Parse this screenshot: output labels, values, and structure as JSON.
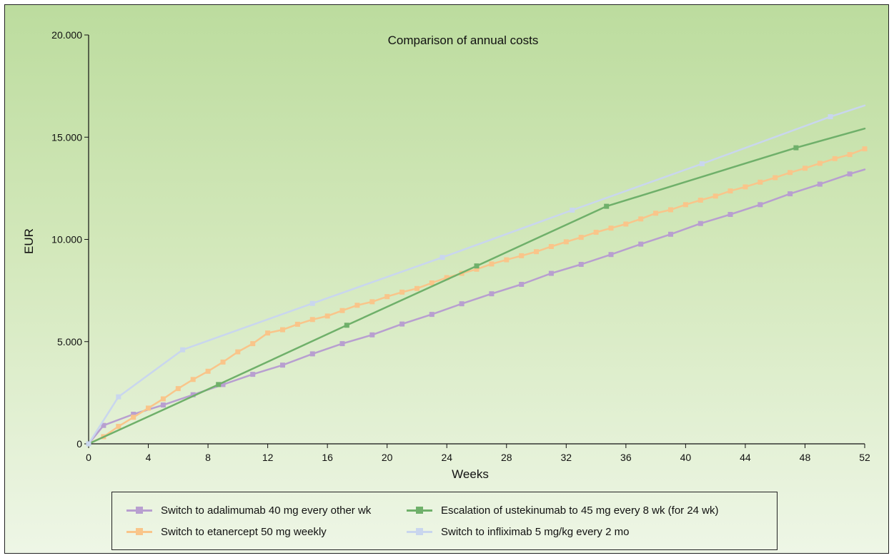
{
  "chart_data": {
    "type": "line",
    "title": "Comparison of annual costs",
    "xlabel": "Weeks",
    "ylabel": "EUR",
    "xlim": [
      0,
      52
    ],
    "ylim": [
      0,
      20000
    ],
    "x_ticks": [
      0,
      4,
      8,
      12,
      16,
      20,
      24,
      28,
      32,
      36,
      40,
      44,
      48,
      52
    ],
    "y_ticks": [
      0,
      5000,
      10000,
      15000,
      20000
    ],
    "y_tick_labels": [
      "0",
      "5.000",
      "10.000",
      "15.000",
      "20.000"
    ],
    "grid": false,
    "legend_position": "bottom",
    "series": [
      {
        "name": "Switch to adalimumab 40 mg every other wk",
        "color": "#b89fd0",
        "line_points": [
          [
            0,
            0
          ],
          [
            1,
            900
          ],
          [
            3,
            1450
          ],
          [
            5,
            1900
          ],
          [
            7,
            2400
          ],
          [
            9,
            2900
          ],
          [
            11,
            3400
          ],
          [
            13,
            3850
          ],
          [
            15,
            4400
          ],
          [
            17,
            4900
          ],
          [
            19,
            5330
          ],
          [
            21,
            5860
          ],
          [
            23,
            6330
          ],
          [
            25,
            6850
          ],
          [
            27,
            7340
          ],
          [
            29,
            7800
          ],
          [
            31,
            8340
          ],
          [
            33,
            8780
          ],
          [
            35,
            9260
          ],
          [
            37,
            9770
          ],
          [
            39,
            10250
          ],
          [
            41,
            10780
          ],
          [
            43,
            11220
          ],
          [
            45,
            11700
          ],
          [
            47,
            12230
          ],
          [
            49,
            12700
          ],
          [
            51,
            13200
          ],
          [
            52,
            13420
          ]
        ],
        "markers": [
          [
            0,
            0
          ],
          [
            1,
            900
          ],
          [
            3,
            1450
          ],
          [
            5,
            1900
          ],
          [
            7,
            2400
          ],
          [
            9,
            2900
          ],
          [
            11,
            3400
          ],
          [
            13,
            3850
          ],
          [
            15,
            4400
          ],
          [
            17,
            4900
          ],
          [
            19,
            5330
          ],
          [
            21,
            5860
          ],
          [
            23,
            6330
          ],
          [
            25,
            6850
          ],
          [
            27,
            7340
          ],
          [
            29,
            7800
          ],
          [
            31,
            8340
          ],
          [
            33,
            8780
          ],
          [
            35,
            9260
          ],
          [
            37,
            9770
          ],
          [
            39,
            10250
          ],
          [
            41,
            10780
          ],
          [
            43,
            11220
          ],
          [
            45,
            11700
          ],
          [
            47,
            12230
          ],
          [
            49,
            12700
          ],
          [
            51,
            13200
          ]
        ]
      },
      {
        "name": "Escalation of ustekinumab to 45 mg every 8 wk (for 24 wk)",
        "color": "#6fb06a",
        "line_points": [
          [
            0,
            0
          ],
          [
            8.7,
            2900
          ],
          [
            17.3,
            5800
          ],
          [
            26,
            8700
          ],
          [
            34.7,
            11620
          ],
          [
            47.4,
            14480
          ],
          [
            52,
            15420
          ]
        ],
        "markers": [
          [
            0,
            0
          ],
          [
            8.7,
            2900
          ],
          [
            17.3,
            5800
          ],
          [
            26,
            8700
          ],
          [
            34.7,
            11620
          ],
          [
            47.4,
            14480
          ]
        ]
      },
      {
        "name": "Switch to etanercept 50 mg weekly",
        "color": "#f9c58a",
        "line_points": [
          [
            0,
            0
          ],
          [
            1,
            350
          ],
          [
            2,
            850
          ],
          [
            3,
            1300
          ],
          [
            4,
            1750
          ],
          [
            5,
            2200
          ],
          [
            6,
            2700
          ],
          [
            7,
            3150
          ],
          [
            8,
            3550
          ],
          [
            9,
            4000
          ],
          [
            10,
            4500
          ],
          [
            11,
            4900
          ],
          [
            12,
            5420
          ],
          [
            13,
            5580
          ],
          [
            14,
            5850
          ],
          [
            15,
            6080
          ],
          [
            16,
            6250
          ],
          [
            17,
            6520
          ],
          [
            18,
            6780
          ],
          [
            19,
            6950
          ],
          [
            20,
            7200
          ],
          [
            21,
            7420
          ],
          [
            22,
            7600
          ],
          [
            23,
            7870
          ],
          [
            24,
            8130
          ],
          [
            25,
            8340
          ],
          [
            26,
            8540
          ],
          [
            27,
            8800
          ],
          [
            28,
            9000
          ],
          [
            29,
            9200
          ],
          [
            30,
            9400
          ],
          [
            31,
            9650
          ],
          [
            32,
            9880
          ],
          [
            33,
            10100
          ],
          [
            34,
            10350
          ],
          [
            35,
            10550
          ],
          [
            36,
            10750
          ],
          [
            37,
            11000
          ],
          [
            38,
            11280
          ],
          [
            39,
            11450
          ],
          [
            40,
            11700
          ],
          [
            41,
            11920
          ],
          [
            42,
            12120
          ],
          [
            43,
            12370
          ],
          [
            44,
            12570
          ],
          [
            45,
            12800
          ],
          [
            46,
            13020
          ],
          [
            47,
            13270
          ],
          [
            48,
            13480
          ],
          [
            49,
            13720
          ],
          [
            50,
            13950
          ],
          [
            51,
            14150
          ],
          [
            52,
            14430
          ]
        ],
        "markers": [
          [
            0,
            0
          ],
          [
            1,
            350
          ],
          [
            2,
            850
          ],
          [
            3,
            1300
          ],
          [
            4,
            1750
          ],
          [
            5,
            2200
          ],
          [
            6,
            2700
          ],
          [
            7,
            3150
          ],
          [
            8,
            3550
          ],
          [
            9,
            4000
          ],
          [
            10,
            4500
          ],
          [
            11,
            4900
          ],
          [
            12,
            5420
          ],
          [
            13,
            5580
          ],
          [
            14,
            5850
          ],
          [
            15,
            6080
          ],
          [
            16,
            6250
          ],
          [
            17,
            6520
          ],
          [
            18,
            6780
          ],
          [
            19,
            6950
          ],
          [
            20,
            7200
          ],
          [
            21,
            7420
          ],
          [
            22,
            7600
          ],
          [
            23,
            7870
          ],
          [
            24,
            8130
          ],
          [
            25,
            8340
          ],
          [
            26,
            8540
          ],
          [
            27,
            8800
          ],
          [
            28,
            9000
          ],
          [
            29,
            9200
          ],
          [
            30,
            9400
          ],
          [
            31,
            9650
          ],
          [
            32,
            9880
          ],
          [
            33,
            10100
          ],
          [
            34,
            10350
          ],
          [
            35,
            10550
          ],
          [
            36,
            10750
          ],
          [
            37,
            11000
          ],
          [
            38,
            11280
          ],
          [
            39,
            11450
          ],
          [
            40,
            11700
          ],
          [
            41,
            11920
          ],
          [
            42,
            12120
          ],
          [
            43,
            12370
          ],
          [
            44,
            12570
          ],
          [
            45,
            12800
          ],
          [
            46,
            13020
          ],
          [
            47,
            13270
          ],
          [
            48,
            13480
          ],
          [
            49,
            13720
          ],
          [
            50,
            13950
          ],
          [
            51,
            14150
          ],
          [
            52,
            14430
          ]
        ]
      },
      {
        "name": "Switch to infliximab 5 mg/kg every 2 mo",
        "color": "#c9d6ee",
        "line_points": [
          [
            0,
            0
          ],
          [
            2,
            2300
          ],
          [
            6.3,
            4600
          ],
          [
            15,
            6870
          ],
          [
            23.7,
            9120
          ],
          [
            32.4,
            11430
          ],
          [
            41.1,
            13700
          ],
          [
            49.7,
            16000
          ],
          [
            52,
            16550
          ]
        ],
        "markers": [
          [
            0,
            0
          ],
          [
            2,
            2300
          ],
          [
            6.3,
            4600
          ],
          [
            15,
            6870
          ],
          [
            23.7,
            9120
          ],
          [
            32.4,
            11430
          ],
          [
            41.1,
            13700
          ],
          [
            49.7,
            16000
          ]
        ]
      }
    ]
  },
  "legend_order": [
    0,
    1,
    2,
    3
  ]
}
